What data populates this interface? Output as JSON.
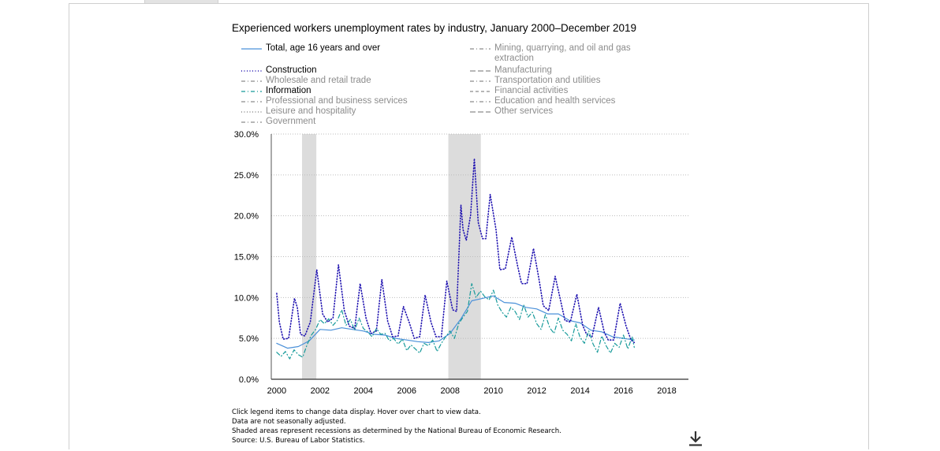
{
  "chart_data": {
    "type": "line",
    "title": "Experienced workers unemployment rates by industry, January 2000–December 2019",
    "y_ticks": [
      "0.0%",
      "5.0%",
      "10.0%",
      "15.0%",
      "20.0%",
      "25.0%",
      "30.0%"
    ],
    "x_ticks": [
      "2000",
      "2002",
      "2004",
      "2006",
      "2008",
      "2010",
      "2012",
      "2014",
      "2016",
      "2018"
    ],
    "ylim": [
      0,
      30
    ],
    "xlim": [
      1999.75,
      2019.0
    ],
    "grid": "horizontal dotted",
    "recessions": [
      [
        2001.17,
        2001.83
      ],
      [
        2007.92,
        2009.42
      ]
    ],
    "legend": [
      {
        "name": "Total, age 16 years and over",
        "active": true,
        "color": "#4a90d9",
        "dash": "solid"
      },
      {
        "name": "Mining, quarrying, and oil and gas extraction",
        "active": false,
        "color": "#8c8c8c",
        "dash": "dashdot"
      },
      {
        "name": "Construction",
        "active": true,
        "color": "#1f12b0",
        "dash": "dotted"
      },
      {
        "name": "Manufacturing",
        "active": false,
        "color": "#8c8c8c",
        "dash": "longdash"
      },
      {
        "name": "Wholesale and retail trade",
        "active": false,
        "color": "#8c8c8c",
        "dash": "dashdot"
      },
      {
        "name": "Transportation and utilities",
        "active": false,
        "color": "#8c8c8c",
        "dash": "dashdot"
      },
      {
        "name": "Information",
        "active": true,
        "color": "#169a9a",
        "dash": "dashdot"
      },
      {
        "name": "Financial activities",
        "active": false,
        "color": "#8c8c8c",
        "dash": "dashed"
      },
      {
        "name": "Professional and business services",
        "active": false,
        "color": "#8c8c8c",
        "dash": "dashdot"
      },
      {
        "name": "Education and health services",
        "active": false,
        "color": "#8c8c8c",
        "dash": "dashdot"
      },
      {
        "name": "Leisure and hospitality",
        "active": false,
        "color": "#8c8c8c",
        "dash": "dotted"
      },
      {
        "name": "Other services",
        "active": false,
        "color": "#8c8c8c",
        "dash": "longdash"
      },
      {
        "name": "Government",
        "active": false,
        "color": "#8c8c8c",
        "dash": "dashdot"
      }
    ],
    "series": [
      {
        "name": "Total, age 16 years and over",
        "color": "#4a90d9",
        "dash": "solid",
        "x": [
          2000.0,
          2000.5,
          2001.0,
          2001.5,
          2002.0,
          2002.5,
          2003.0,
          2003.5,
          2004.0,
          2004.5,
          2005.0,
          2005.5,
          2006.0,
          2006.5,
          2007.0,
          2007.5,
          2008.0,
          2008.5,
          2009.0,
          2009.5,
          2010.0,
          2010.5,
          2011.0,
          2011.5,
          2012.0,
          2012.5,
          2013.0,
          2013.5,
          2014.0,
          2014.5,
          2015.0,
          2015.5,
          2016.0,
          2016.5
        ],
        "y": [
          4.4,
          3.8,
          4.0,
          4.7,
          6.1,
          6.0,
          6.3,
          6.1,
          5.9,
          5.5,
          5.4,
          5.0,
          4.8,
          4.6,
          4.5,
          4.7,
          5.6,
          7.4,
          9.6,
          9.9,
          10.2,
          9.4,
          9.3,
          8.8,
          8.6,
          8.0,
          8.0,
          7.2,
          6.9,
          6.0,
          5.8,
          5.2,
          5.0,
          4.8
        ]
      },
      {
        "name": "Construction",
        "color": "#1f12b0",
        "dash": "dotted",
        "x": [
          2000.0,
          2000.12,
          2000.3,
          2000.55,
          2000.82,
          2000.95,
          2001.1,
          2001.3,
          2001.55,
          2001.85,
          2002.12,
          2002.35,
          2002.6,
          2002.85,
          2003.12,
          2003.35,
          2003.6,
          2003.85,
          2004.12,
          2004.35,
          2004.6,
          2004.85,
          2005.12,
          2005.35,
          2005.6,
          2005.85,
          2006.12,
          2006.35,
          2006.6,
          2006.85,
          2007.12,
          2007.35,
          2007.6,
          2007.85,
          2008.12,
          2008.3,
          2008.5,
          2008.6,
          2008.75,
          2008.95,
          2009.12,
          2009.3,
          2009.5,
          2009.65,
          2009.85,
          2010.12,
          2010.3,
          2010.55,
          2010.85,
          2011.12,
          2011.3,
          2011.55,
          2011.85,
          2012.12,
          2012.3,
          2012.55,
          2012.85,
          2013.12,
          2013.3,
          2013.55,
          2013.85,
          2014.12,
          2014.3,
          2014.55,
          2014.85,
          2015.12,
          2015.3,
          2015.55,
          2015.85,
          2016.12,
          2016.35,
          2016.5
        ],
        "y": [
          10.5,
          7.0,
          4.9,
          5.0,
          9.9,
          8.8,
          5.5,
          5.3,
          7.0,
          13.4,
          8.0,
          7.0,
          7.5,
          14.0,
          8.4,
          6.5,
          6.2,
          11.7,
          7.5,
          5.6,
          5.9,
          12.2,
          7.1,
          5.2,
          5.3,
          8.9,
          6.9,
          5.0,
          5.2,
          10.3,
          7.0,
          5.2,
          5.2,
          12.0,
          8.5,
          8.3,
          21.3,
          18.3,
          17.0,
          20.1,
          27.0,
          19.2,
          17.2,
          17.2,
          22.6,
          18.3,
          13.4,
          13.5,
          17.4,
          13.8,
          11.7,
          11.7,
          16.0,
          12.0,
          9.0,
          8.4,
          12.6,
          9.4,
          7.2,
          7.0,
          10.4,
          6.6,
          5.5,
          5.2,
          8.8,
          5.7,
          4.8,
          4.8,
          9.3,
          6.5,
          4.8,
          4.5
        ]
      },
      {
        "name": "Information",
        "color": "#169a9a",
        "dash": "dashdot",
        "x": [
          2000.0,
          2000.2,
          2000.4,
          2000.6,
          2000.8,
          2001.0,
          2001.2,
          2001.4,
          2001.6,
          2001.8,
          2002.0,
          2002.2,
          2002.4,
          2002.6,
          2002.8,
          2003.0,
          2003.2,
          2003.4,
          2003.6,
          2003.8,
          2004.0,
          2004.2,
          2004.4,
          2004.6,
          2004.8,
          2005.0,
          2005.2,
          2005.4,
          2005.6,
          2005.8,
          2006.0,
          2006.2,
          2006.4,
          2006.6,
          2006.8,
          2007.0,
          2007.2,
          2007.4,
          2007.6,
          2007.8,
          2008.0,
          2008.2,
          2008.4,
          2008.6,
          2008.8,
          2009.0,
          2009.2,
          2009.4,
          2009.6,
          2009.8,
          2010.0,
          2010.2,
          2010.4,
          2010.6,
          2010.8,
          2011.0,
          2011.2,
          2011.4,
          2011.6,
          2011.8,
          2012.0,
          2012.2,
          2012.4,
          2012.6,
          2012.8,
          2013.0,
          2013.2,
          2013.4,
          2013.6,
          2013.8,
          2014.0,
          2014.2,
          2014.4,
          2014.6,
          2014.8,
          2015.0,
          2015.2,
          2015.4,
          2015.6,
          2015.8,
          2016.0,
          2016.2,
          2016.4,
          2016.5
        ],
        "y": [
          3.3,
          2.8,
          3.4,
          2.5,
          3.6,
          3.0,
          2.7,
          4.2,
          5.4,
          6.1,
          7.3,
          6.8,
          7.4,
          6.6,
          7.2,
          8.5,
          6.6,
          7.3,
          6.0,
          7.5,
          6.2,
          5.8,
          5.2,
          6.2,
          5.5,
          5.6,
          4.7,
          5.0,
          4.3,
          4.9,
          3.5,
          4.2,
          3.7,
          3.2,
          4.4,
          4.1,
          4.8,
          3.4,
          4.4,
          5.2,
          5.9,
          5.0,
          6.8,
          7.6,
          8.3,
          11.7,
          10.0,
          10.8,
          10.1,
          9.7,
          10.9,
          9.1,
          8.2,
          7.6,
          8.8,
          8.3,
          7.3,
          9.1,
          7.6,
          8.2,
          6.8,
          6.1,
          7.9,
          6.3,
          5.6,
          7.5,
          6.0,
          5.5,
          4.7,
          6.8,
          5.1,
          4.4,
          5.9,
          4.3,
          3.3,
          5.3,
          4.1,
          3.2,
          4.4,
          3.9,
          5.4,
          3.7,
          5.2,
          3.9
        ]
      }
    ]
  },
  "notes": [
    "Click legend items to change data display. Hover over chart to view data.",
    "Data are not seasonally adjusted.",
    "Shaded areas represent recessions as determined by the National Bureau of Economic Research.",
    "Source: U.S. Bureau of Labor Statistics."
  ],
  "icons": {
    "download": "download-icon"
  }
}
